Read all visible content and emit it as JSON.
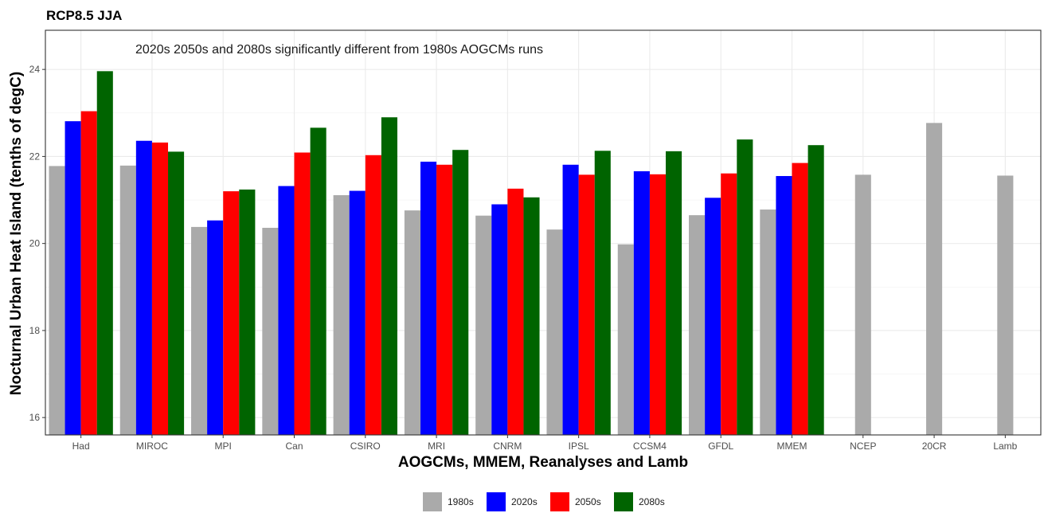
{
  "chart_data": {
    "type": "bar",
    "title": "RCP8.5 JJA",
    "annotation": "2020s 2050s and 2080s significantly different from 1980s AOGCMs runs",
    "xlabel": "AOGCMs, MMEM, Reanalyses and Lamb",
    "ylabel": "Nocturnal Urban Heat Island (tenths of degC)",
    "ylim": [
      15.6,
      24.9
    ],
    "yticks": [
      16,
      18,
      20,
      22,
      24
    ],
    "grid": true,
    "legend_position": "bottom",
    "categories": [
      "Had",
      "MIROC",
      "MPI",
      "Can",
      "CSIRO",
      "MRI",
      "CNRM",
      "IPSL",
      "CCSM4",
      "GFDL",
      "MMEM",
      "NCEP",
      "20CR",
      "Lamb"
    ],
    "series": [
      {
        "name": "1980s",
        "color": "#aaaaaa",
        "values": [
          21.78,
          21.79,
          20.38,
          20.36,
          21.11,
          20.76,
          20.64,
          20.32,
          19.98,
          20.65,
          20.78,
          21.58,
          22.77,
          21.56
        ]
      },
      {
        "name": "2020s",
        "color": "#0000ff",
        "values": [
          22.81,
          22.36,
          20.53,
          21.32,
          21.21,
          21.88,
          20.9,
          21.81,
          21.66,
          21.05,
          21.55,
          null,
          null,
          null
        ]
      },
      {
        "name": "2050s",
        "color": "#ff0000",
        "values": [
          23.04,
          22.32,
          21.2,
          22.09,
          22.03,
          21.81,
          21.26,
          21.58,
          21.59,
          21.61,
          21.85,
          null,
          null,
          null
        ]
      },
      {
        "name": "2080s",
        "color": "#006400",
        "values": [
          23.96,
          22.11,
          21.24,
          22.66,
          22.9,
          22.15,
          21.06,
          22.13,
          22.12,
          22.39,
          22.26,
          null,
          null,
          null
        ]
      }
    ]
  }
}
